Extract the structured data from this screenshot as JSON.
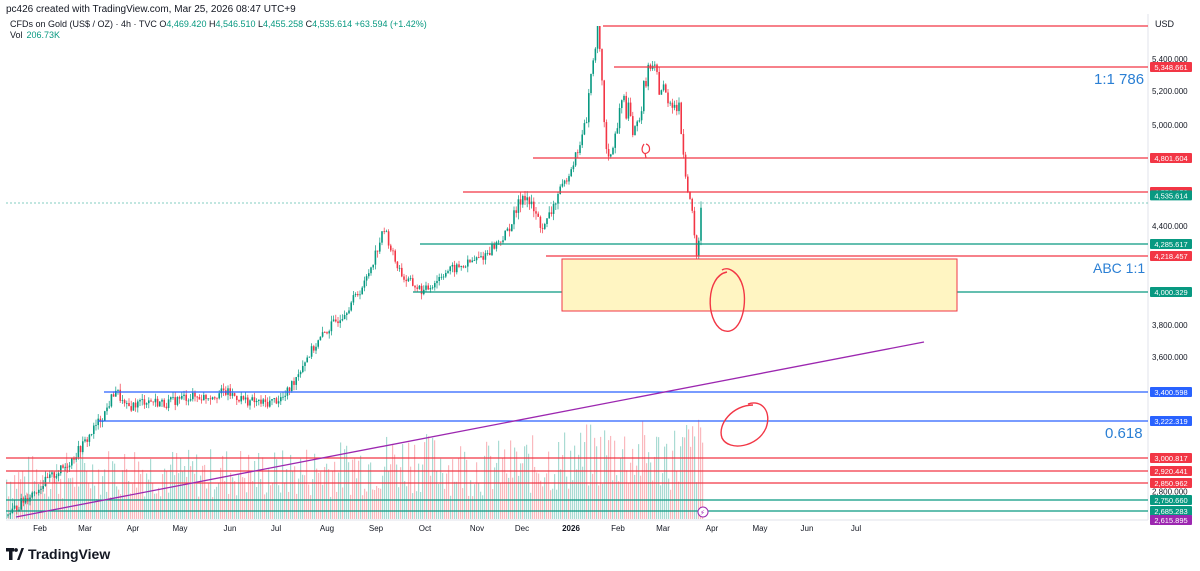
{
  "header": {
    "attribution": "pc426 created with TradingView.com, Mar 25, 2026 08:47 UTC+9"
  },
  "legend": {
    "symbol": "CFDs on Gold (US$ / OZ) · 4h · TVC",
    "open_label": "O",
    "open": "4,469.420",
    "high_label": "H",
    "high": "4,546.510",
    "low_label": "L",
    "low": "4,455.258",
    "close_label": "C",
    "close": "4,535.614",
    "change": "+63.594 (+1.42%)",
    "vol_label": "Vol",
    "vol_value": "206.73K"
  },
  "footer": {
    "brand": "TradingView"
  },
  "colors": {
    "red": "#f23645",
    "green": "#089981",
    "blue": "#2962ff",
    "purple": "#9c27b0",
    "annotation": "#2a7fd4",
    "zone_fill": "#fff5c2"
  },
  "chart_data": {
    "type": "candlestick",
    "symbol": "CFDs on Gold (US$ / OZ)",
    "timeframe": "4h",
    "currency": "USD",
    "y_tick_labels": [
      "5,400.000",
      "5,200.000",
      "5,000.000",
      "4,400.000",
      "3,800.000",
      "3,600.000",
      "2,800.000"
    ],
    "y_ticks": [
      5400,
      5200,
      5000,
      4400,
      3800,
      3600,
      2800
    ],
    "x_tick_labels": [
      "Feb",
      "Mar",
      "Apr",
      "May",
      "Jun",
      "Jul",
      "Aug",
      "Sep",
      "Oct",
      "Nov",
      "Dec",
      "2026",
      "Feb",
      "Mar",
      "Apr",
      "May",
      "Jun",
      "Jul"
    ],
    "price_points": [
      [
        0,
        2650
      ],
      [
        1,
        2760
      ],
      [
        2,
        2860
      ],
      [
        3,
        2950
      ],
      [
        4,
        3100
      ],
      [
        5,
        3280
      ],
      [
        5.5,
        3420
      ],
      [
        6,
        3300
      ],
      [
        7,
        3350
      ],
      [
        8,
        3330
      ],
      [
        9,
        3370
      ],
      [
        10,
        3370
      ],
      [
        11,
        3400
      ],
      [
        12,
        3350
      ],
      [
        13,
        3330
      ],
      [
        14,
        3370
      ],
      [
        15,
        3580
      ],
      [
        16,
        3750
      ],
      [
        17,
        3880
      ],
      [
        18,
        4050
      ],
      [
        19,
        4380
      ],
      [
        19.5,
        4200
      ],
      [
        20,
        4080
      ],
      [
        21,
        4000
      ],
      [
        22,
        4120
      ],
      [
        23,
        4160
      ],
      [
        24,
        4220
      ],
      [
        25,
        4330
      ],
      [
        26,
        4550
      ],
      [
        27,
        4380
      ],
      [
        28,
        4600
      ],
      [
        29,
        4950
      ],
      [
        29.7,
        5590
      ],
      [
        30.2,
        4750
      ],
      [
        31,
        5150
      ],
      [
        31.6,
        4950
      ],
      [
        32.3,
        5350
      ],
      [
        33,
        5200
      ],
      [
        33.8,
        5100
      ],
      [
        34.3,
        4550
      ],
      [
        34.7,
        4200
      ],
      [
        35,
        4535.614
      ]
    ],
    "volume_profile": [
      0.36,
      0.4,
      0.42,
      0.45,
      0.48,
      0.52,
      0.6,
      0.55,
      0.5,
      0.48,
      0.5,
      0.52,
      0.5,
      0.48,
      0.52,
      0.55,
      0.6,
      0.65,
      0.7,
      0.75,
      0.8,
      0.72,
      0.65,
      0.6,
      0.62,
      0.64,
      0.68,
      0.72,
      0.8,
      0.85,
      0.95,
      0.9,
      0.85,
      0.88,
      0.98,
      1.0
    ],
    "horizontal_levels": [
      {
        "price": "5,348.661",
        "color": "red"
      },
      {
        "price": "4,801.604",
        "color": "red"
      },
      {
        "price": "4,550.452",
        "color": "red"
      },
      {
        "price": "4,535.614",
        "color": "green"
      },
      {
        "price": "4,285.617",
        "color": "green"
      },
      {
        "price": "4,218.457",
        "color": "red"
      },
      {
        "price": "4,000.329",
        "color": "green"
      },
      {
        "price": "3,400.598",
        "color": "blue"
      },
      {
        "price": "3,222.319",
        "color": "blue"
      },
      {
        "price": "3,000.817",
        "color": "red"
      },
      {
        "price": "2,920.441",
        "color": "red"
      },
      {
        "price": "2,850.962",
        "color": "red"
      },
      {
        "price": "2,750.660",
        "color": "green"
      },
      {
        "price": "2,685.283",
        "color": "green"
      },
      {
        "price": "2,615.895",
        "color": "purple"
      }
    ],
    "annotations": [
      "1:1 786",
      "ABC 1:1",
      "0.618"
    ],
    "price_axis_label": "USD"
  }
}
